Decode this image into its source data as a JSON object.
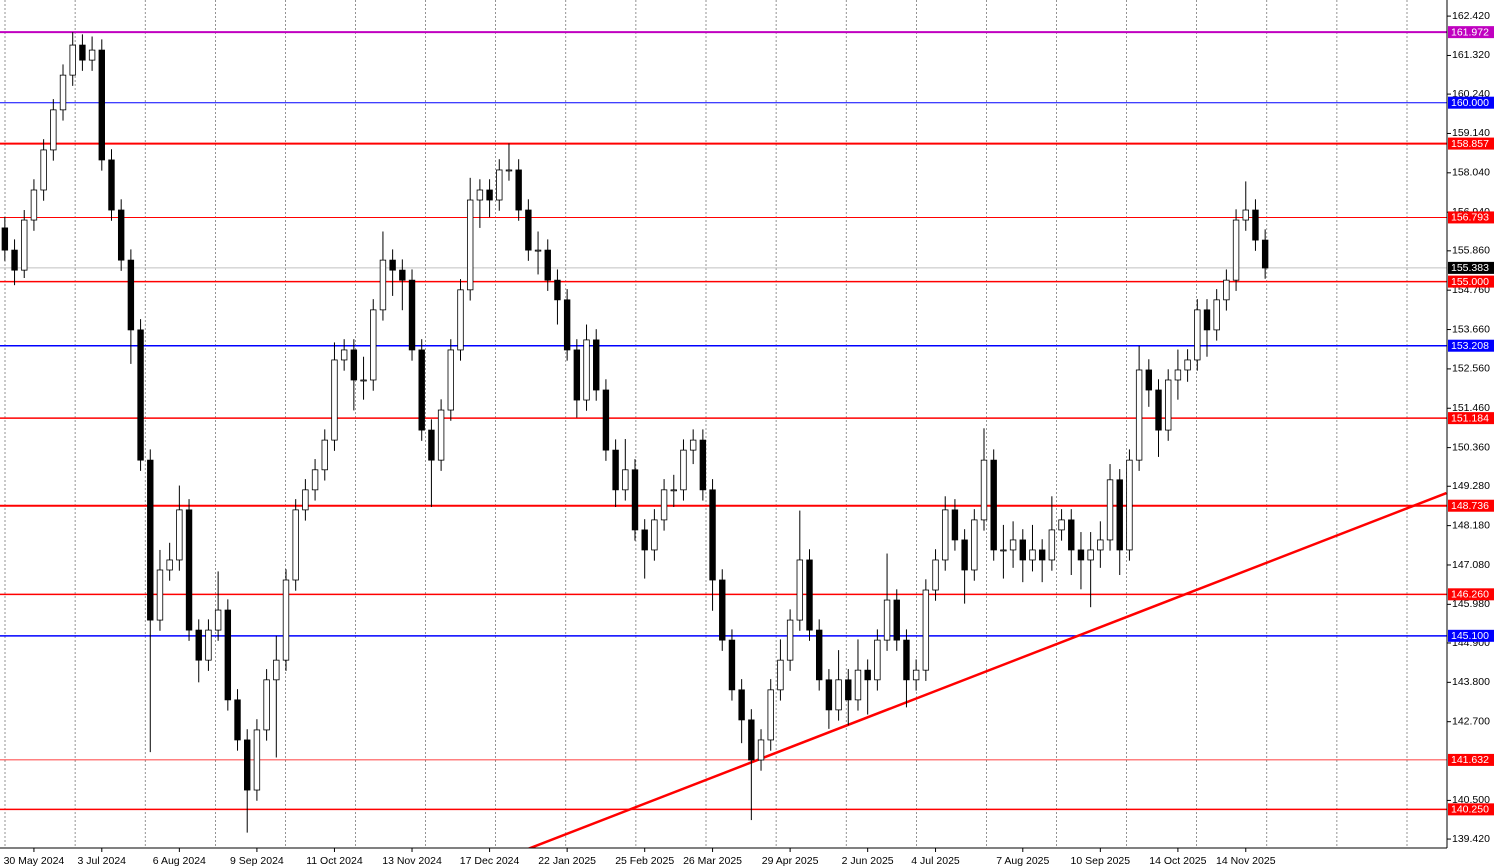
{
  "chart_data": {
    "type": "candlestick",
    "ylim": [
      139.17,
      162.87
    ],
    "yticks": [
      {
        "value": 162.42,
        "label": "162.420"
      },
      {
        "value": 161.32,
        "label": "161.320"
      },
      {
        "value": 160.24,
        "label": "160.240"
      },
      {
        "value": 159.14,
        "label": "159.140"
      },
      {
        "value": 158.04,
        "label": "158.040"
      },
      {
        "value": 156.94,
        "label": "156.940"
      },
      {
        "value": 155.86,
        "label": "155.860"
      },
      {
        "value": 154.76,
        "label": "154.760"
      },
      {
        "value": 153.66,
        "label": "153.660"
      },
      {
        "value": 152.56,
        "label": "152.560"
      },
      {
        "value": 151.46,
        "label": "151.460"
      },
      {
        "value": 150.36,
        "label": "150.360"
      },
      {
        "value": 149.28,
        "label": "149.280"
      },
      {
        "value": 148.18,
        "label": "148.180"
      },
      {
        "value": 147.08,
        "label": "147.080"
      },
      {
        "value": 145.98,
        "label": "145.980"
      },
      {
        "value": 144.9,
        "label": "144.900"
      },
      {
        "value": 143.8,
        "label": "143.800"
      },
      {
        "value": 142.7,
        "label": "142.700"
      },
      {
        "value": 140.5,
        "label": "140.500"
      },
      {
        "value": 139.42,
        "label": "139.420"
      }
    ],
    "grid": true,
    "categories": [
      null,
      null,
      null,
      "30 May 2024",
      null,
      null,
      null,
      null,
      null,
      null,
      "3 Jul 2024",
      null,
      null,
      null,
      null,
      null,
      null,
      null,
      "6 Aug 2024",
      null,
      null,
      null,
      null,
      null,
      null,
      null,
      "9 Sep 2024",
      null,
      null,
      null,
      null,
      null,
      null,
      null,
      "11 Oct 2024",
      null,
      null,
      null,
      null,
      null,
      null,
      null,
      "13 Nov 2024",
      null,
      null,
      null,
      null,
      null,
      null,
      null,
      "17 Dec 2024",
      null,
      null,
      null,
      null,
      null,
      null,
      null,
      "22 Jan 2025",
      null,
      null,
      null,
      null,
      null,
      null,
      null,
      "25 Feb 2025",
      null,
      null,
      null,
      null,
      null,
      null,
      "26 Mar 2025",
      null,
      null,
      null,
      null,
      null,
      null,
      null,
      "29 Apr 2025",
      null,
      null,
      null,
      null,
      null,
      null,
      null,
      "2 Jun 2025",
      null,
      null,
      null,
      null,
      null,
      null,
      "4 Jul 2025",
      null,
      null,
      null,
      null,
      null,
      null,
      null,
      null,
      "7 Aug 2025",
      null,
      null,
      null,
      null,
      null,
      null,
      null,
      "10 Sep 2025",
      null,
      null,
      null,
      null,
      null,
      null,
      null,
      "14 Oct 2025",
      null,
      null,
      null,
      null,
      null,
      null,
      "14 Nov 2025",
      null,
      null
    ],
    "open": [
      156.5,
      155.88,
      155.32,
      156.72,
      157.56,
      158.68,
      159.8,
      160.77,
      161.61,
      161.19,
      161.47,
      158.4,
      157.0,
      155.6,
      153.65,
      150.01,
      145.54,
      146.94,
      147.22,
      148.62,
      145.26,
      144.42,
      145.26,
      145.82,
      143.31,
      142.19,
      140.79,
      142.47,
      143.87,
      144.42,
      146.66,
      148.62,
      149.18,
      149.74,
      150.57,
      152.81,
      153.09,
      152.25,
      152.25,
      154.21,
      155.6,
      155.32,
      155.04,
      153.09,
      150.85,
      150.01,
      151.41,
      153.09,
      154.77,
      157.28,
      157.56,
      157.28,
      158.12,
      158.12,
      157.0,
      155.88,
      155.88,
      155.04,
      154.49,
      153.09,
      151.69,
      153.37,
      151.97,
      150.29,
      149.18,
      149.74,
      148.06,
      147.5,
      148.34,
      149.18,
      149.18,
      150.29,
      150.57,
      149.18,
      146.66,
      144.98,
      143.59,
      142.75,
      141.63,
      142.19,
      143.59,
      144.42,
      145.54,
      147.22,
      145.26,
      143.87,
      143.03,
      143.87,
      143.31,
      144.14,
      143.87,
      144.98,
      146.1,
      144.98,
      143.87,
      144.14,
      146.38,
      147.22,
      148.62,
      147.78,
      146.94,
      148.34,
      150.01,
      147.5,
      147.5,
      147.78,
      147.22,
      147.5,
      147.22,
      148.06,
      148.34,
      147.5,
      147.22,
      147.5,
      147.78,
      149.46,
      147.5,
      150.01,
      152.53,
      151.97,
      150.85,
      152.25,
      152.53,
      152.81,
      154.21,
      153.65,
      154.49,
      155.04,
      156.72,
      157.0,
      156.16
    ],
    "high": [
      156.8,
      156.18,
      157.0,
      157.86,
      158.98,
      160.1,
      161.07,
      161.97,
      161.91,
      161.85,
      161.77,
      158.7,
      157.3,
      155.9,
      153.95,
      150.31,
      147.5,
      147.7,
      149.3,
      148.92,
      145.56,
      145.56,
      146.9,
      146.12,
      143.61,
      142.49,
      142.77,
      144.17,
      145.1,
      146.96,
      148.92,
      149.48,
      150.04,
      150.87,
      153.3,
      153.39,
      153.39,
      152.9,
      154.51,
      156.4,
      155.9,
      155.62,
      155.34,
      153.39,
      151.15,
      151.71,
      153.39,
      155.07,
      157.9,
      157.86,
      157.86,
      158.42,
      158.86,
      158.42,
      157.3,
      156.4,
      156.18,
      155.34,
      154.79,
      153.39,
      153.8,
      153.67,
      152.27,
      150.59,
      150.6,
      150.04,
      148.36,
      148.64,
      149.48,
      149.6,
      150.59,
      150.87,
      150.87,
      149.48,
      146.96,
      145.28,
      143.89,
      143.05,
      142.49,
      143.89,
      145.0,
      145.84,
      148.6,
      147.52,
      145.56,
      144.17,
      144.7,
      144.17,
      145.0,
      144.44,
      145.28,
      147.4,
      146.4,
      145.28,
      144.44,
      146.68,
      147.52,
      149.0,
      148.92,
      148.08,
      148.64,
      150.9,
      150.31,
      148.2,
      148.3,
      148.08,
      148.2,
      147.8,
      149.0,
      148.64,
      148.64,
      148.0,
      148.0,
      148.3,
      149.9,
      149.76,
      150.31,
      153.2,
      152.83,
      152.27,
      152.55,
      153.1,
      153.11,
      154.51,
      154.51,
      154.79,
      155.34,
      157.02,
      157.8,
      157.3,
      156.46
    ],
    "low": [
      155.58,
      154.9,
      155.1,
      156.42,
      157.26,
      158.38,
      159.5,
      160.47,
      160.89,
      160.89,
      158.1,
      156.7,
      155.3,
      152.7,
      149.71,
      141.85,
      145.24,
      146.64,
      146.92,
      144.96,
      143.8,
      144.12,
      144.96,
      143.01,
      141.89,
      139.6,
      140.49,
      142.17,
      141.7,
      144.12,
      146.36,
      148.32,
      148.88,
      149.44,
      150.27,
      152.51,
      151.4,
      151.7,
      151.95,
      153.91,
      154.6,
      154.2,
      152.79,
      150.55,
      148.7,
      149.71,
      151.11,
      152.79,
      154.47,
      156.5,
      156.8,
      156.98,
      157.82,
      156.7,
      155.58,
      155.2,
      154.74,
      153.8,
      152.79,
      151.2,
      151.39,
      151.67,
      149.99,
      148.7,
      148.88,
      147.76,
      146.7,
      147.2,
      148.04,
      148.7,
      148.88,
      149.9,
      148.88,
      145.8,
      144.68,
      143.29,
      142.1,
      139.95,
      141.33,
      141.89,
      143.29,
      144.12,
      145.24,
      144.96,
      143.57,
      142.5,
      142.73,
      142.6,
      143.01,
      142.9,
      143.57,
      144.68,
      144.68,
      143.1,
      143.57,
      143.84,
      146.08,
      146.92,
      147.48,
      146.0,
      146.64,
      148.04,
      147.2,
      146.7,
      147.0,
      146.6,
      146.9,
      146.6,
      146.92,
      147.76,
      146.8,
      146.4,
      145.9,
      147.0,
      147.48,
      146.8,
      147.2,
      149.71,
      151.5,
      150.1,
      150.55,
      151.7,
      152.2,
      152.51,
      152.9,
      153.35,
      154.19,
      154.74,
      156.42,
      155.86,
      155.08
    ],
    "close": [
      155.88,
      155.32,
      156.72,
      157.56,
      158.68,
      159.8,
      160.77,
      161.61,
      161.19,
      161.47,
      158.4,
      157.0,
      155.6,
      153.65,
      150.01,
      145.54,
      146.94,
      147.22,
      148.62,
      145.26,
      144.42,
      145.26,
      145.82,
      143.31,
      142.19,
      140.79,
      142.47,
      143.87,
      144.42,
      146.66,
      148.62,
      149.18,
      149.74,
      150.57,
      152.81,
      153.09,
      152.25,
      152.25,
      154.21,
      155.6,
      155.32,
      155.04,
      153.09,
      150.85,
      150.01,
      151.41,
      153.09,
      154.77,
      157.28,
      157.56,
      157.28,
      158.12,
      158.12,
      157.0,
      155.88,
      155.88,
      155.04,
      154.49,
      153.09,
      151.69,
      153.37,
      151.97,
      150.29,
      149.18,
      149.74,
      148.06,
      147.5,
      148.34,
      149.18,
      149.18,
      150.29,
      150.57,
      149.18,
      146.66,
      144.98,
      143.59,
      142.75,
      141.63,
      142.19,
      143.59,
      144.42,
      145.54,
      147.22,
      145.26,
      143.87,
      143.03,
      143.87,
      143.31,
      144.14,
      143.87,
      144.98,
      146.1,
      144.98,
      143.87,
      144.14,
      146.38,
      147.22,
      148.62,
      147.78,
      146.94,
      148.34,
      150.01,
      147.5,
      147.5,
      147.78,
      147.22,
      147.5,
      147.22,
      148.06,
      148.34,
      147.5,
      147.22,
      147.5,
      147.78,
      149.46,
      147.5,
      150.01,
      152.53,
      151.97,
      150.85,
      152.25,
      152.53,
      152.81,
      154.21,
      153.65,
      154.49,
      155.04,
      156.72,
      157.0,
      156.16,
      155.38
    ],
    "up_color": "#ffffff",
    "down_color": "#000000",
    "wick_color": "#000000",
    "levels": [
      {
        "value": 161.972,
        "color": "#c000c0",
        "width": 2
      },
      {
        "value": 160,
        "label": "160.000",
        "color": "#0000ff",
        "width": 1
      },
      {
        "value": 158.857,
        "color": "#ff0000",
        "width": 2
      },
      {
        "value": 156.793,
        "color": "#ff0000",
        "width": 1
      },
      {
        "value": 155.383,
        "color": "#c0c0c0",
        "box_color": "#000000",
        "width": 1
      },
      {
        "value": 155,
        "label": "155.000",
        "color": "#ff0000",
        "width": 1.5
      },
      {
        "value": 153.208,
        "color": "#0000ff",
        "width": 1.5
      },
      {
        "value": 151.184,
        "color": "#ff0000",
        "width": 1.5
      },
      {
        "value": 148.736,
        "color": "#ff0000",
        "width": 2
      },
      {
        "value": 146.26,
        "label": "146.260",
        "color": "#ff0000",
        "width": 1.5
      },
      {
        "value": 145.1,
        "label": "145.100",
        "color": "#0000ff",
        "width": 1.5
      },
      {
        "value": 141.632,
        "color": "#ff0000",
        "width": 0.8
      },
      {
        "value": 140.25,
        "label": "140.250",
        "color": "#ff0000",
        "width": 1.5
      }
    ],
    "trendline": {
      "x": [
        52.3,
        148.7
      ],
      "y": [
        138.97,
        149.09
      ],
      "color": "#ff0000",
      "width": 2.5
    }
  }
}
